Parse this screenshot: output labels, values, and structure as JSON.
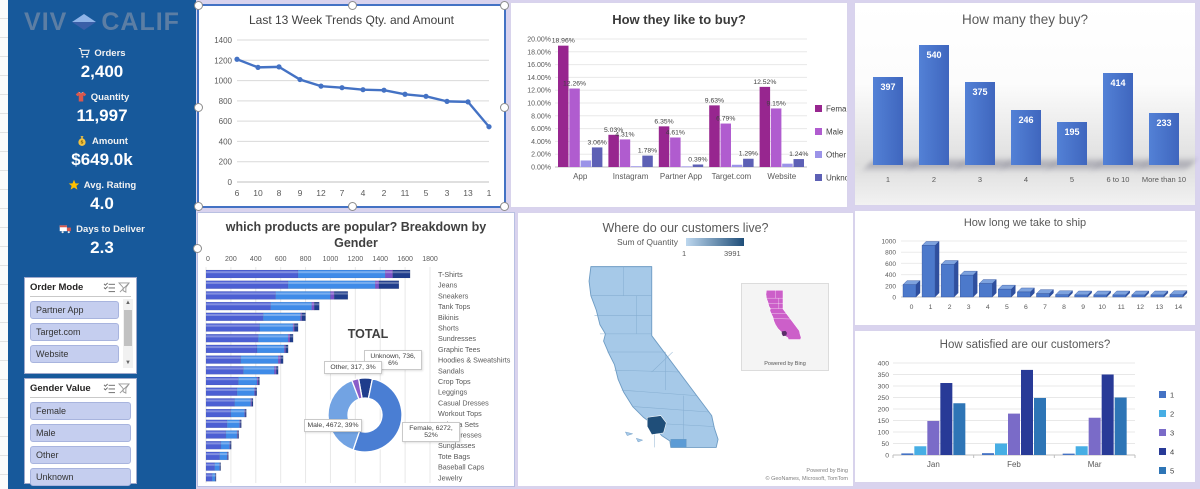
{
  "sidebar": {
    "logo": {
      "part1": "VIV",
      "part2": "CALIF",
      "mark": "diamond-icon"
    },
    "kpis": [
      {
        "icon": "cart-icon",
        "label": "Orders",
        "value": "2,400"
      },
      {
        "icon": "shirt-icon",
        "label": "Quantity",
        "value": "11,997"
      },
      {
        "icon": "money-bag-icon",
        "label": "Amount",
        "value": "$649.0k"
      },
      {
        "icon": "star-icon",
        "label": "Avg. Rating",
        "value": "4.0"
      },
      {
        "icon": "delivery-truck-icon",
        "label": "Days to Deliver",
        "value": "2.3"
      }
    ],
    "slicers": [
      {
        "title": "Order Mode",
        "items": [
          "Partner App",
          "Target.com",
          "Website"
        ],
        "has_scrollbar": true
      },
      {
        "title": "Gender Value",
        "items": [
          "Female",
          "Male",
          "Other",
          "Unknown"
        ],
        "has_scrollbar": false
      }
    ]
  },
  "chart_data": [
    {
      "id": "weekly",
      "type": "line",
      "title": "Last 13 Week Trends Qty. and Amount",
      "categories": [
        "6",
        "10",
        "8",
        "9",
        "12",
        "7",
        "4",
        "2",
        "11",
        "5",
        "3",
        "13",
        "1"
      ],
      "values": [
        1210,
        1130,
        1135,
        1010,
        945,
        930,
        910,
        905,
        865,
        845,
        795,
        790,
        545
      ],
      "ylim": [
        0,
        1400
      ],
      "ytick": 200,
      "color": "#4472C4"
    },
    {
      "id": "how_buy",
      "type": "bar-grouped",
      "title": "How they like to buy?",
      "categories": [
        "App",
        "Instagram",
        "Partner App",
        "Target.com",
        "Website"
      ],
      "ylim": [
        0,
        20
      ],
      "ytick": 2,
      "unit": "%",
      "legend_position": "right",
      "series": [
        {
          "name": "Female",
          "color": "#97268F",
          "show_labels": true,
          "values": [
            18.96,
            5.03,
            6.35,
            9.63,
            12.52
          ]
        },
        {
          "name": "Male",
          "color": "#B05CCF",
          "show_labels": true,
          "values": [
            12.26,
            4.31,
            4.61,
            6.79,
            9.15
          ]
        },
        {
          "name": "Other",
          "color": "#9B93E8",
          "show_labels": false,
          "values": [
            1.02,
            0.12,
            0.1,
            0.35,
            0.52
          ]
        },
        {
          "name": "Unknown",
          "color": "#5D60B5",
          "show_labels": true,
          "values": [
            3.06,
            1.78,
            0.39,
            1.29,
            1.24
          ]
        }
      ]
    },
    {
      "id": "how_many",
      "type": "bar",
      "title": "How many they buy?",
      "categories": [
        "1",
        "2",
        "3",
        "4",
        "5",
        "6 to 10",
        "More than 10"
      ],
      "values": [
        397,
        540,
        375,
        246,
        195,
        414,
        233
      ],
      "bar_color": "#4472C4"
    },
    {
      "id": "products",
      "type": "hbar-stacked",
      "title": "which products are popular? Breakdown by Gender",
      "xlim": [
        0,
        1800
      ],
      "xtick": 200,
      "categories": [
        "T-Shirts",
        "Jeans",
        "Sneakers",
        "Tank Tops",
        "Bikinis",
        "Shorts",
        "Sundresses",
        "Graphic Tees",
        "Hoodies & Sweatshirts",
        "Sandals",
        "Crop Tops",
        "Leggings",
        "Casual Dresses",
        "Workout Tops",
        "Pajama Sets",
        "Maxi Dresses",
        "Sunglasses",
        "Tote Bags",
        "Baseball Caps",
        "Jewelry"
      ],
      "series": [
        {
          "name": "Female",
          "color": "#4C5FD3",
          "values": [
            740,
            660,
            560,
            520,
            460,
            430,
            420,
            410,
            280,
            300,
            260,
            250,
            230,
            200,
            170,
            160,
            120,
            110,
            70,
            50
          ]
        },
        {
          "name": "Male",
          "color": "#3F8BE8",
          "values": [
            700,
            700,
            440,
            330,
            300,
            270,
            240,
            220,
            300,
            250,
            150,
            140,
            130,
            110,
            100,
            90,
            70,
            60,
            40,
            25
          ]
        },
        {
          "name": "Other",
          "color": "#7B52C8",
          "values": [
            60,
            30,
            30,
            20,
            10,
            10,
            15,
            10,
            20,
            15,
            10,
            8,
            8,
            6,
            6,
            5,
            5,
            4,
            3,
            2
          ]
        },
        {
          "name": "Unknown",
          "color": "#1F3D8C",
          "values": [
            140,
            160,
            110,
            40,
            30,
            30,
            25,
            20,
            20,
            15,
            10,
            10,
            10,
            8,
            8,
            8,
            8,
            6,
            5,
            4
          ]
        }
      ]
    },
    {
      "id": "total_donut",
      "type": "donut",
      "title": "TOTAL",
      "slices": [
        {
          "name": "Unknown",
          "value": "736",
          "pct": "6%",
          "color": "#1F3D8C"
        },
        {
          "name": "Female",
          "value": "6272",
          "pct": "52%",
          "color": "#4A7ED3"
        },
        {
          "name": "Male",
          "value": "4672",
          "pct": "39%",
          "color": "#72A3E3"
        },
        {
          "name": "Other",
          "value": "317",
          "pct": "3%",
          "color": "#8B5CC8"
        }
      ]
    },
    {
      "id": "map",
      "type": "map",
      "title": "Where do our customers live?",
      "legend_label": "Sum of Quantity",
      "legend_min": "1",
      "legend_max": "3991",
      "inset_label": "Powered by Bing",
      "attribution": [
        "Powered by Bing",
        "© GeoNames, Microsoft, TomTom"
      ]
    },
    {
      "id": "ship",
      "type": "bar-3d",
      "title": "How long we take to ship",
      "categories": [
        "0",
        "1",
        "2",
        "3",
        "4",
        "5",
        "6",
        "7",
        "8",
        "9",
        "10",
        "11",
        "12",
        "13",
        "14"
      ],
      "values": [
        220,
        920,
        580,
        390,
        240,
        140,
        90,
        60,
        40,
        30,
        30,
        30,
        30,
        30,
        40
      ],
      "ylim": [
        0,
        1000
      ],
      "ytick": 200
    },
    {
      "id": "satisfied",
      "type": "bar-grouped",
      "title": "How satisfied are our customers?",
      "categories": [
        "Jan",
        "Feb",
        "Mar"
      ],
      "ylim": [
        0,
        400
      ],
      "ytick": 50,
      "legend_position": "right",
      "series": [
        {
          "name": "1",
          "color": "#4472C4",
          "show_labels": false,
          "values": [
            7,
            8,
            6
          ]
        },
        {
          "name": "2",
          "color": "#47AEE4",
          "show_labels": false,
          "values": [
            38,
            50,
            38
          ]
        },
        {
          "name": "3",
          "color": "#7A6BC8",
          "show_labels": false,
          "values": [
            148,
            180,
            162
          ]
        },
        {
          "name": "4",
          "color": "#283A97",
          "show_labels": false,
          "values": [
            313,
            370,
            350
          ]
        },
        {
          "name": "5",
          "color": "#2E75B6",
          "show_labels": false,
          "values": [
            225,
            248,
            250
          ]
        }
      ]
    }
  ]
}
